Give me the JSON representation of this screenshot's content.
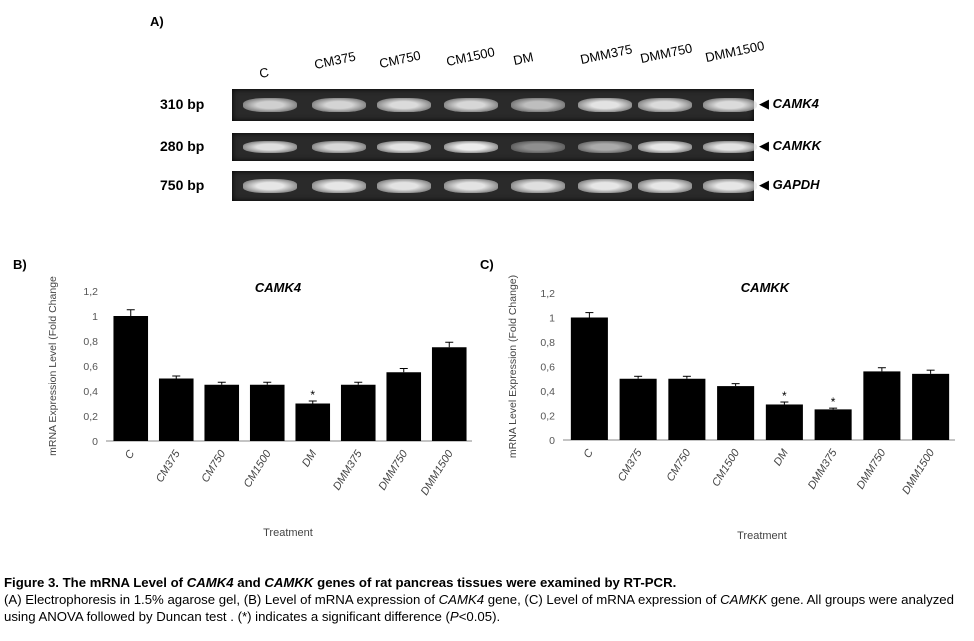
{
  "panelA": {
    "letter": "A)",
    "lanes": [
      "C",
      "CM375",
      "CM750",
      "CM1500",
      "DM",
      "DMM375",
      "DMM750",
      "DMM1500"
    ],
    "rows": [
      {
        "bp": "310 bp",
        "gene": "CAMK4",
        "intensity": [
          0.8,
          0.82,
          0.86,
          0.84,
          0.7,
          0.9,
          0.86,
          0.86
        ]
      },
      {
        "bp": "280 bp",
        "gene": "CAMKK",
        "intensity": [
          0.88,
          0.84,
          0.9,
          0.95,
          0.45,
          0.6,
          0.92,
          0.9
        ]
      },
      {
        "bp": "750 bp",
        "gene": "GAPDH",
        "intensity": [
          0.92,
          0.92,
          0.9,
          0.9,
          0.88,
          0.92,
          0.92,
          0.92
        ]
      }
    ],
    "arrow": "◀"
  },
  "chartB": {
    "letter": "B)",
    "chart_data": {
      "type": "bar",
      "title": "CAMK4",
      "ylabel": "mRNA Expression Level (Fold Change",
      "xlabel": "Treatment",
      "categories": [
        "C",
        "CM375",
        "CM750",
        "CM1500",
        "DM",
        "DMM375",
        "DMM750",
        "DMM1500"
      ],
      "values": [
        1.0,
        0.5,
        0.45,
        0.45,
        0.3,
        0.45,
        0.55,
        0.75
      ],
      "errors": [
        0.05,
        0.02,
        0.02,
        0.02,
        0.02,
        0.02,
        0.03,
        0.04
      ],
      "significant": [
        false,
        false,
        false,
        false,
        true,
        false,
        false,
        false
      ],
      "ylim": [
        0,
        1.2
      ],
      "yticks": [
        "0",
        "0,2",
        "0,4",
        "0,6",
        "0,8",
        "1",
        "1,2"
      ],
      "sig_mark": "*"
    }
  },
  "chartC": {
    "letter": "C)",
    "chart_data": {
      "type": "bar",
      "title": "CAMKK",
      "ylabel": "mRNA Level Expression (Fold Change)",
      "xlabel": "Treatment",
      "categories": [
        "C",
        "CM375",
        "CM750",
        "CM1500",
        "DM",
        "DMM375",
        "DMM750",
        "DMM1500"
      ],
      "values": [
        1.0,
        0.5,
        0.5,
        0.44,
        0.29,
        0.25,
        0.56,
        0.54
      ],
      "errors": [
        0.04,
        0.02,
        0.02,
        0.02,
        0.02,
        0.01,
        0.03,
        0.03
      ],
      "significant": [
        false,
        false,
        false,
        false,
        true,
        true,
        false,
        false
      ],
      "ylim": [
        0,
        1.2
      ],
      "yticks": [
        "0",
        "0,2",
        "0,4",
        "0,6",
        "0,8",
        "1",
        "1,2"
      ],
      "sig_mark": "*"
    }
  },
  "caption": {
    "title_parts": [
      {
        "text": "Figure 3. The mRNA Level of ",
        "italic": false
      },
      {
        "text": "CAMK4",
        "italic": true
      },
      {
        "text": " and ",
        "italic": false
      },
      {
        "text": "CAMKK",
        "italic": true
      },
      {
        "text": " genes of rat pancreas tissues were examined by RT-PCR.",
        "italic": false
      }
    ],
    "body_parts": [
      {
        "text": "(A) Electrophoresis in 1.5% agarose gel, (B) Level of mRNA expression of ",
        "italic": false
      },
      {
        "text": "CAMK4",
        "italic": true
      },
      {
        "text": " gene, (C) Level of mRNA expression of ",
        "italic": false
      },
      {
        "text": "CAMKK",
        "italic": true
      },
      {
        "text": " gene. All groups were analyzed using ANOVA followed by Duncan test . (*) indicates a significant difference (",
        "italic": false
      },
      {
        "text": "P",
        "italic": true
      },
      {
        "text": "<0.05).",
        "italic": false
      }
    ]
  }
}
